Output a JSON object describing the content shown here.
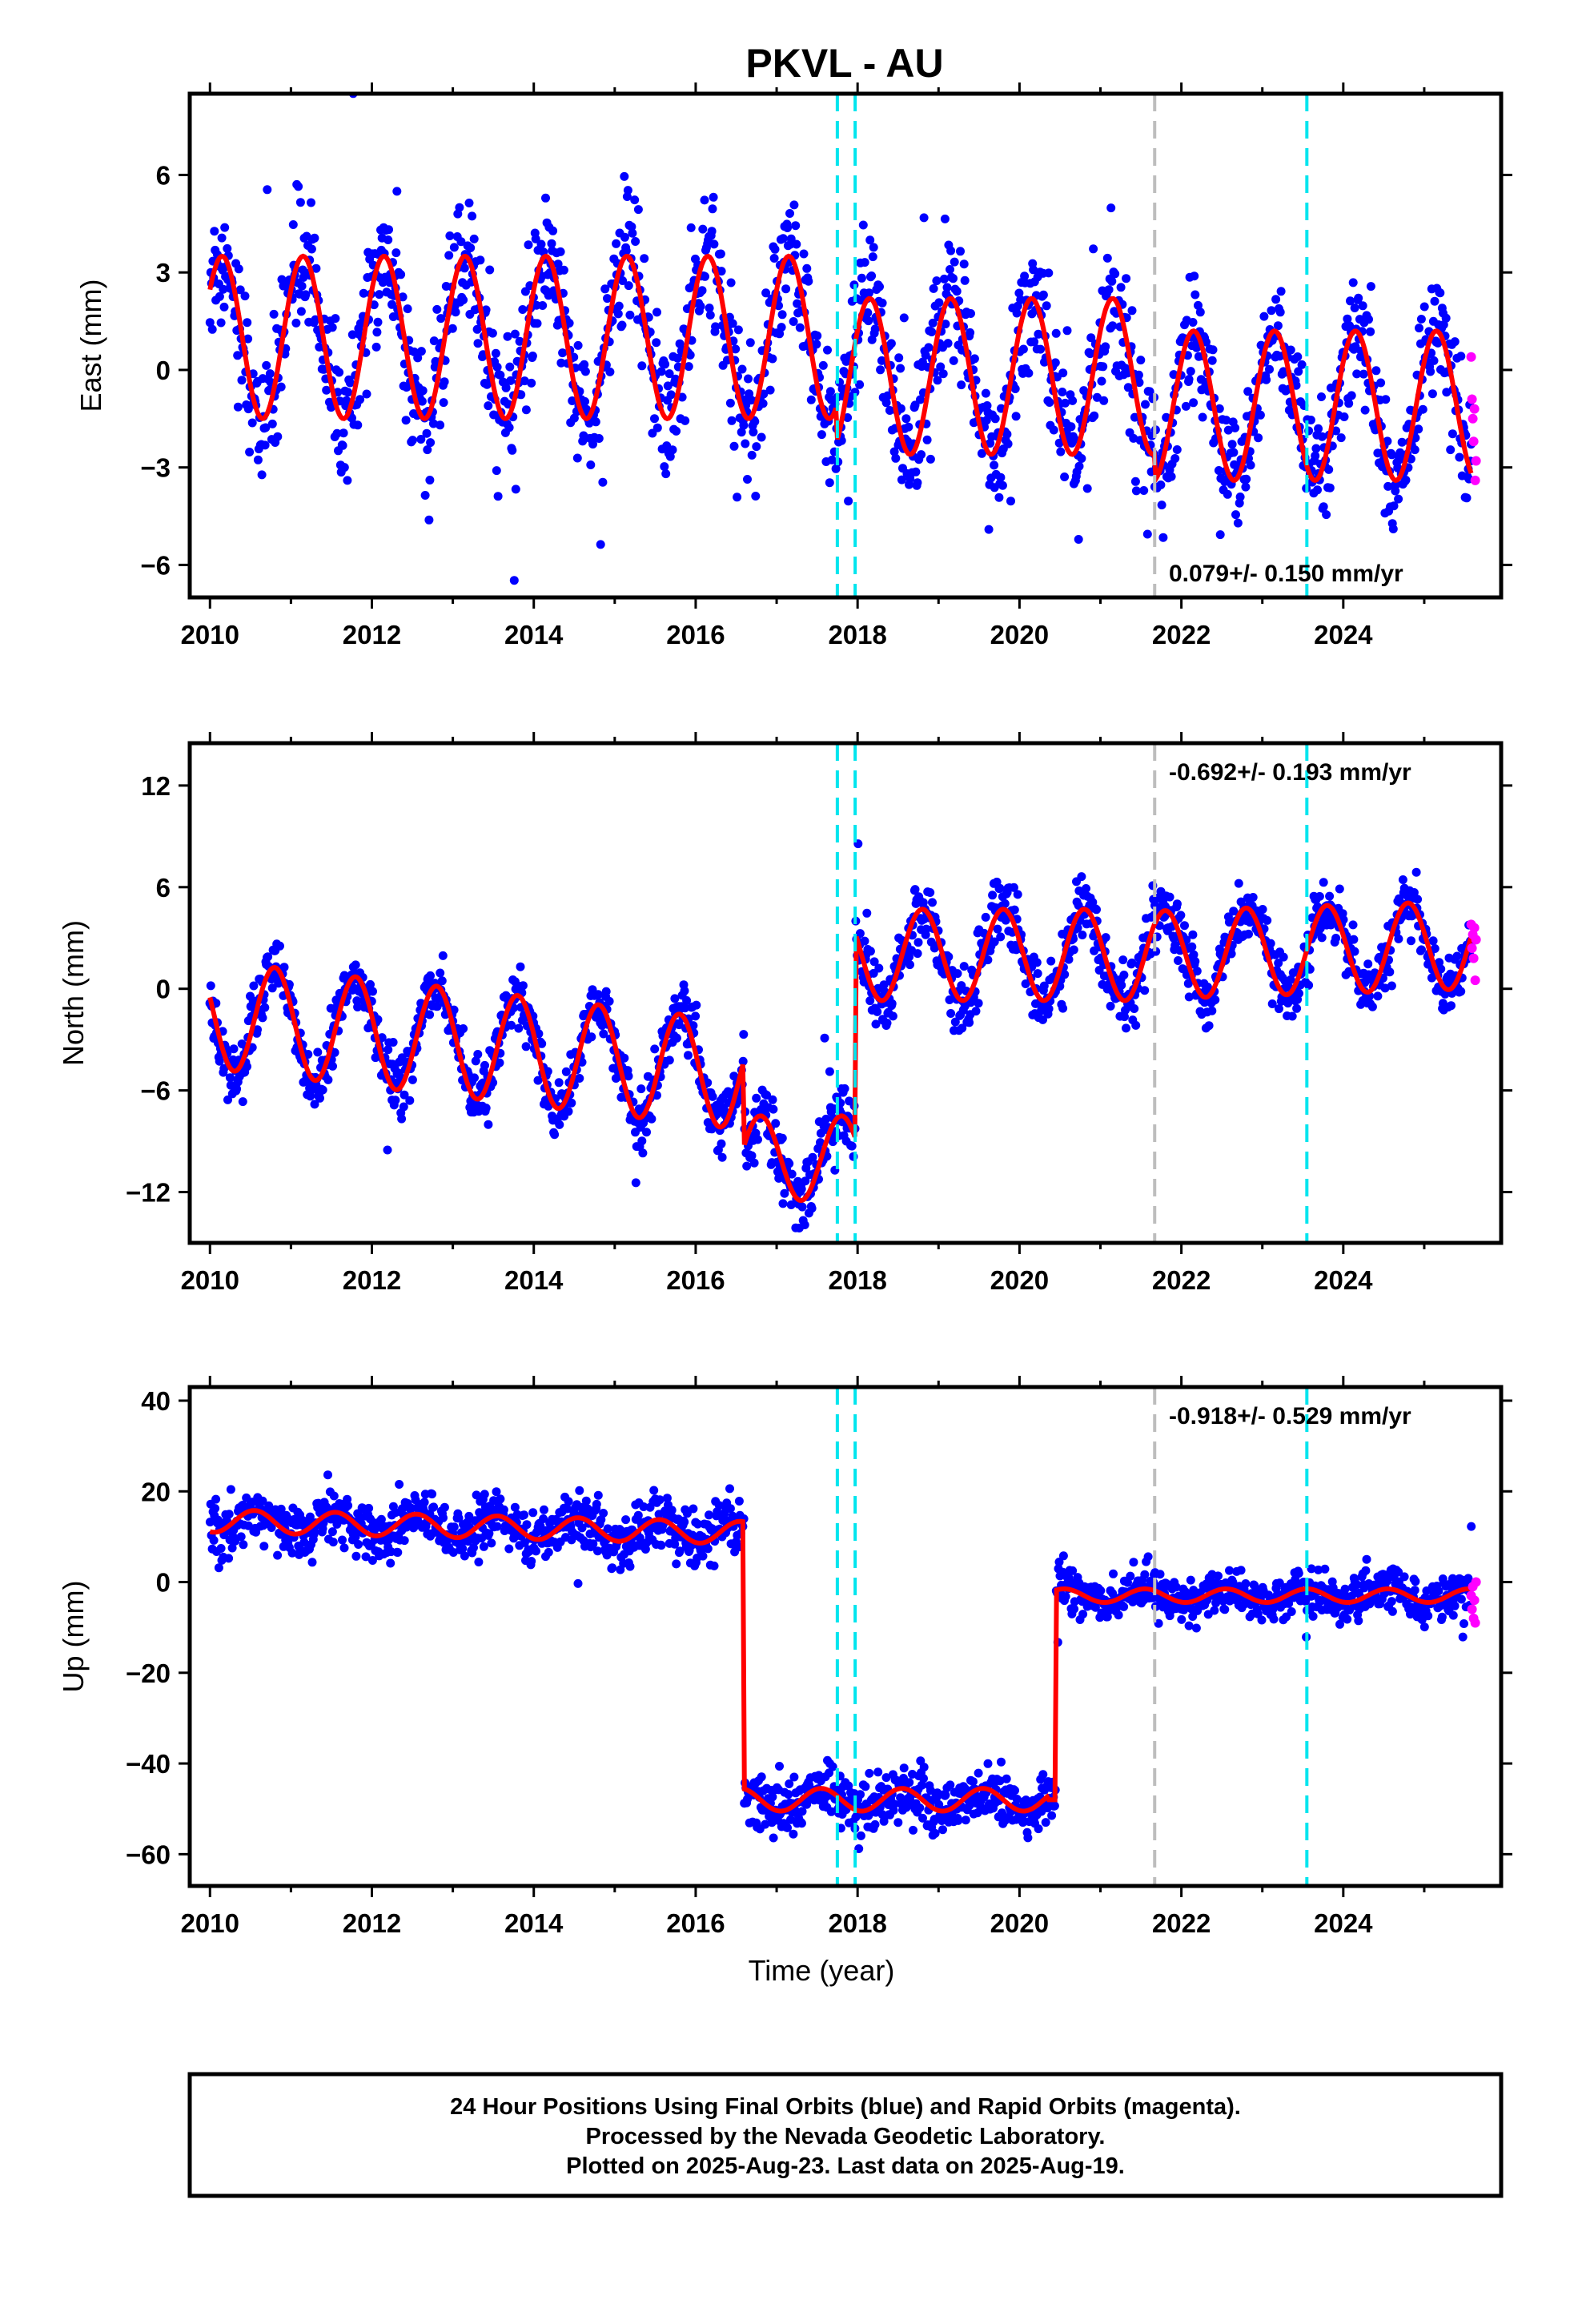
{
  "title": "PKVL - AU",
  "footer": {
    "line1": "24 Hour Positions Using Final Orbits (blue) and Rapid Orbits (magenta).",
    "line2": "Processed by the Nevada Geodetic Laboratory.",
    "line3": "Plotted on 2025-Aug-23. Last data on 2025-Aug-19."
  },
  "colors": {
    "final": "#0000ff",
    "rapid": "#ff00ff",
    "model": "#ff0000",
    "event_cyan": "#00e5ee",
    "event_gray": "#bdbdbd"
  },
  "chart_data": [
    {
      "type": "scatter",
      "ylabel": "East (mm)",
      "xlabel": "",
      "xlim": [
        2009.75,
        2025.95
      ],
      "ylim": [
        -7,
        8.5
      ],
      "xticks": [
        "2010",
        "2012",
        "2014",
        "2016",
        "2018",
        "2020",
        "2022",
        "2024"
      ],
      "yticks": [
        "6",
        "3",
        "0",
        "-3",
        "-6"
      ],
      "rate": "0.079+/- 0.150 mm/yr",
      "rate_position": "bottom-right",
      "events_cyan": [
        2017.75,
        2017.97,
        2023.55
      ],
      "events_gray": [
        2021.67
      ],
      "model_breaks": [
        [
          2017.75,
          -1.2,
          4.6
        ],
        [
          2021.67,
          -1.3,
          0.6
        ]
      ],
      "series": [
        {
          "role": "final",
          "x_start": 2010.0,
          "x_end": 2025.58,
          "segments": [
            {
              "x0": 2010.0,
              "x1": 2017.75,
              "a": 2.5,
              "b": 1.0,
              "phase": 0.9,
              "noise": 1.4
            },
            {
              "x0": 2017.75,
              "x1": 2021.67,
              "a": 2.4,
              "b": -0.2,
              "phase": 0.9,
              "noise": 1.6
            },
            {
              "x0": 2021.67,
              "x1": 2025.58,
              "a": 2.3,
              "b": -1.1,
              "phase": 0.9,
              "noise": 1.3
            }
          ]
        },
        {
          "role": "rapid",
          "x": [
            2025.58,
            2025.59,
            2025.6,
            2025.61,
            2025.62,
            2025.63,
            2025.64
          ],
          "y": [
            0.4,
            -0.9,
            -1.5,
            -2.2,
            -1.2,
            -3.4,
            -2.8
          ]
        }
      ]
    },
    {
      "type": "scatter",
      "ylabel": "North (mm)",
      "xlabel": "",
      "xlim": [
        2009.75,
        2025.95
      ],
      "ylim": [
        -15,
        14.5
      ],
      "xticks": [
        "2010",
        "2012",
        "2014",
        "2016",
        "2018",
        "2020",
        "2022",
        "2024"
      ],
      "yticks": [
        "12",
        "6",
        "0",
        "-6",
        "-12"
      ],
      "rate": "-0.692+/- 0.193 mm/yr",
      "rate_position": "top-right",
      "events_cyan": [
        2017.75,
        2017.97,
        2023.55
      ],
      "events_gray": [
        2021.67
      ],
      "series": [
        {
          "role": "final",
          "x_start": 2010.0,
          "x_end": 2025.58,
          "segments": [
            {
              "x0": 2010.0,
              "x1": 2016.6,
              "a": 3.2,
              "b": -1.5,
              "slope": -0.55,
              "phase": 0.55,
              "noise": 1.3
            },
            {
              "x0": 2016.6,
              "x1": 2017.97,
              "a": 2.5,
              "b": -10.0,
              "slope": 0.0,
              "phase": 0.55,
              "noise": 1.6
            },
            {
              "x0": 2017.97,
              "x1": 2021.67,
              "a": 2.7,
              "b": 2.0,
              "slope": 0.0,
              "phase": 0.55,
              "noise": 1.5
            },
            {
              "x0": 2021.67,
              "x1": 2025.58,
              "a": 2.6,
              "b": 2.0,
              "slope": 0.15,
              "phase": 0.55,
              "noise": 1.2
            }
          ]
        },
        {
          "role": "rapid",
          "x": [
            2025.58,
            2025.59,
            2025.6,
            2025.61,
            2025.62,
            2025.63,
            2025.64
          ],
          "y": [
            3.8,
            2.4,
            3.2,
            1.8,
            3.6,
            0.5,
            2.9
          ]
        }
      ]
    },
    {
      "type": "scatter",
      "ylabel": "Up (mm)",
      "xlabel": "Time (year)",
      "xlim": [
        2009.75,
        2025.95
      ],
      "ylim": [
        -67,
        43
      ],
      "xticks": [
        "2010",
        "2012",
        "2014",
        "2016",
        "2018",
        "2020",
        "2022",
        "2024"
      ],
      "yticks": [
        "40",
        "20",
        "0",
        "-20",
        "-40",
        "-60"
      ],
      "rate": "-0.918+/- 0.529 mm/yr",
      "rate_position": "top-right",
      "events_cyan": [
        2017.75,
        2017.97,
        2023.55
      ],
      "events_gray": [
        2021.67
      ],
      "series": [
        {
          "role": "final",
          "x_start": 2010.0,
          "x_end": 2025.58,
          "segments": [
            {
              "x0": 2010.0,
              "x1": 2016.6,
              "a": 2.5,
              "b": 13.5,
              "slope": -0.4,
              "phase": 0.3,
              "noise": 4.5
            },
            {
              "x0": 2016.6,
              "x1": 2020.35,
              "a": 2.5,
              "b": -48.0,
              "slope": 0.0,
              "phase": 0.3,
              "noise": 4.5
            },
            {
              "x0": 2020.35,
              "x1": 2020.45,
              "a": 0,
              "b": -48.0,
              "slope": 0.0,
              "phase": 0.3,
              "noise": 4.0
            },
            {
              "x0": 2020.4,
              "x1": 2025.58,
              "a": 1.5,
              "b": -3.0,
              "slope": 0.0,
              "phase": 0.3,
              "noise": 3.5
            }
          ]
        },
        {
          "role": "rapid",
          "x": [
            2025.58,
            2025.59,
            2025.6,
            2025.61,
            2025.62,
            2025.63,
            2025.64
          ],
          "y": [
            -3,
            -6,
            -1,
            -8,
            -4,
            -9,
            0
          ]
        }
      ]
    }
  ]
}
